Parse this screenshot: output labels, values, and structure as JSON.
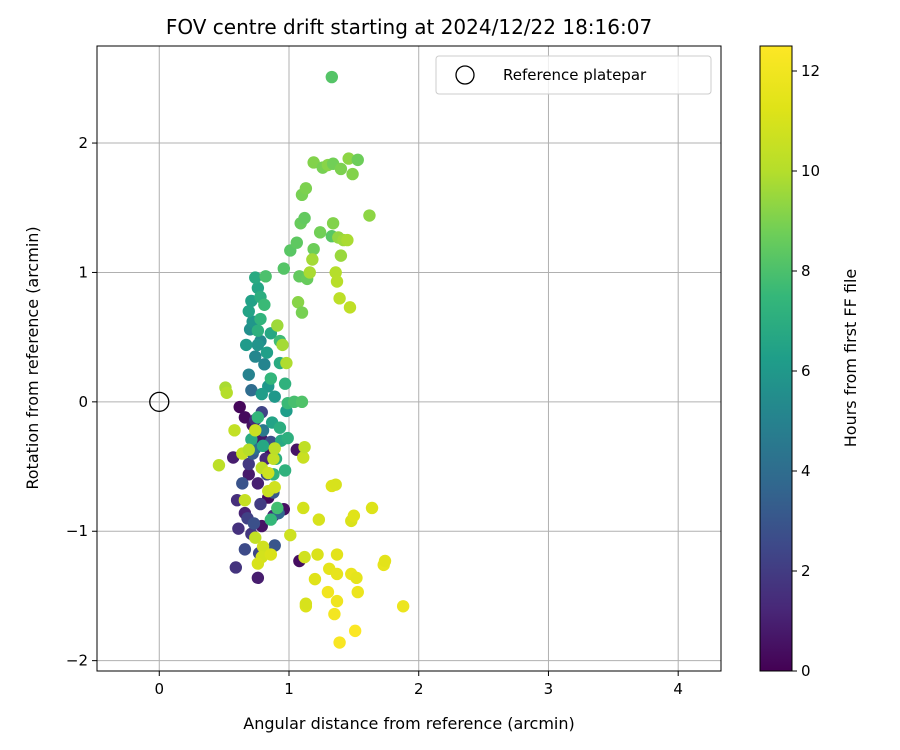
{
  "chart_data": {
    "type": "scatter",
    "title": "FOV centre drift starting at 2024/12/22 18:16:07",
    "xlabel": "Angular distance from reference (arcmin)",
    "ylabel": "Rotation from reference (arcmin)",
    "xlim": [
      -0.48,
      4.33
    ],
    "ylim": [
      -2.08,
      2.75
    ],
    "xticks": [
      "0",
      "1",
      "2",
      "3",
      "4"
    ],
    "yticks": [
      "−2",
      "−1",
      "0",
      "1",
      "2"
    ],
    "grid": true,
    "legend": {
      "placement": "top-right",
      "entries": [
        "Reference platepar"
      ]
    },
    "reference_point": {
      "name": "Reference platepar",
      "x": 0.0,
      "y": 0.0
    },
    "colorbar": {
      "label": "Hours from first FF file",
      "range": [
        0,
        12.5
      ],
      "ticks": [
        "0",
        "2",
        "4",
        "6",
        "8",
        "10",
        "12"
      ],
      "colormap": "viridis"
    },
    "points": [
      {
        "x": 0.62,
        "y": -0.04,
        "h": 0.2
      },
      {
        "x": 0.66,
        "y": -0.12,
        "h": 0.3
      },
      {
        "x": 0.72,
        "y": -0.18,
        "h": 0.5
      },
      {
        "x": 0.79,
        "y": -0.29,
        "h": 0.7
      },
      {
        "x": 0.86,
        "y": -0.38,
        "h": 0.4
      },
      {
        "x": 1.06,
        "y": -0.37,
        "h": 0.6
      },
      {
        "x": 0.57,
        "y": -0.43,
        "h": 0.9
      },
      {
        "x": 0.69,
        "y": -0.56,
        "h": 0.8
      },
      {
        "x": 0.76,
        "y": -0.63,
        "h": 1.0
      },
      {
        "x": 0.84,
        "y": -0.74,
        "h": 0.3
      },
      {
        "x": 0.96,
        "y": -0.83,
        "h": 0.5
      },
      {
        "x": 0.66,
        "y": -0.86,
        "h": 1.1
      },
      {
        "x": 0.79,
        "y": -0.96,
        "h": 0.6
      },
      {
        "x": 1.08,
        "y": -1.23,
        "h": 0.4
      },
      {
        "x": 0.76,
        "y": -1.36,
        "h": 0.9
      },
      {
        "x": 0.6,
        "y": -0.76,
        "h": 1.5
      },
      {
        "x": 0.61,
        "y": -0.98,
        "h": 1.6
      },
      {
        "x": 0.71,
        "y": -1.02,
        "h": 1.8
      },
      {
        "x": 0.69,
        "y": -0.48,
        "h": 1.9
      },
      {
        "x": 0.59,
        "y": -1.28,
        "h": 1.7
      },
      {
        "x": 0.78,
        "y": -0.79,
        "h": 2.0
      },
      {
        "x": 0.74,
        "y": -0.14,
        "h": 1.4
      },
      {
        "x": 0.82,
        "y": -0.44,
        "h": 1.3
      },
      {
        "x": 0.88,
        "y": -0.88,
        "h": 1.2
      },
      {
        "x": 0.68,
        "y": -0.9,
        "h": 2.2
      },
      {
        "x": 0.77,
        "y": -1.17,
        "h": 2.4
      },
      {
        "x": 0.66,
        "y": -1.14,
        "h": 2.6
      },
      {
        "x": 0.73,
        "y": -0.94,
        "h": 2.8
      },
      {
        "x": 0.64,
        "y": -0.63,
        "h": 2.9
      },
      {
        "x": 0.83,
        "y": -0.56,
        "h": 2.5
      },
      {
        "x": 0.89,
        "y": -1.11,
        "h": 3.0
      },
      {
        "x": 0.86,
        "y": -0.31,
        "h": 2.7
      },
      {
        "x": 0.72,
        "y": -0.4,
        "h": 3.2
      },
      {
        "x": 0.79,
        "y": -0.08,
        "h": 2.3
      },
      {
        "x": 0.88,
        "y": -0.7,
        "h": 3.1
      },
      {
        "x": 0.71,
        "y": 0.09,
        "h": 4.0
      },
      {
        "x": 0.74,
        "y": -0.36,
        "h": 4.2
      },
      {
        "x": 0.8,
        "y": -0.22,
        "h": 4.5
      },
      {
        "x": 0.92,
        "y": -0.86,
        "h": 3.8
      },
      {
        "x": 0.69,
        "y": 0.21,
        "h": 5.0
      },
      {
        "x": 0.74,
        "y": 0.35,
        "h": 5.2
      },
      {
        "x": 0.78,
        "y": 0.47,
        "h": 5.4
      },
      {
        "x": 0.7,
        "y": 0.56,
        "h": 5.6
      },
      {
        "x": 0.76,
        "y": 0.44,
        "h": 5.8
      },
      {
        "x": 0.81,
        "y": 0.29,
        "h": 5.1
      },
      {
        "x": 0.67,
        "y": 0.44,
        "h": 6.1
      },
      {
        "x": 0.72,
        "y": 0.62,
        "h": 5.9
      },
      {
        "x": 0.84,
        "y": 0.12,
        "h": 6.0
      },
      {
        "x": 0.79,
        "y": 0.06,
        "h": 6.2
      },
      {
        "x": 0.71,
        "y": 0.78,
        "h": 6.4
      },
      {
        "x": 0.76,
        "y": 0.88,
        "h": 6.6
      },
      {
        "x": 0.74,
        "y": 0.96,
        "h": 6.8
      },
      {
        "x": 0.78,
        "y": 0.81,
        "h": 7.0
      },
      {
        "x": 0.69,
        "y": 0.7,
        "h": 6.5
      },
      {
        "x": 0.86,
        "y": 0.53,
        "h": 6.7
      },
      {
        "x": 0.83,
        "y": 0.38,
        "h": 6.3
      },
      {
        "x": 0.93,
        "y": 0.3,
        "h": 6.9
      },
      {
        "x": 0.89,
        "y": 0.04,
        "h": 6.0
      },
      {
        "x": 0.98,
        "y": -0.07,
        "h": 6.2
      },
      {
        "x": 0.87,
        "y": -0.16,
        "h": 6.5
      },
      {
        "x": 0.94,
        "y": -0.3,
        "h": 6.8
      },
      {
        "x": 0.9,
        "y": -0.44,
        "h": 7.0
      },
      {
        "x": 0.97,
        "y": -0.53,
        "h": 7.2
      },
      {
        "x": 0.99,
        "y": -0.28,
        "h": 7.1
      },
      {
        "x": 0.88,
        "y": -0.56,
        "h": 7.3
      },
      {
        "x": 0.76,
        "y": -0.12,
        "h": 7.4
      },
      {
        "x": 0.71,
        "y": -0.29,
        "h": 6.9
      },
      {
        "x": 0.8,
        "y": -0.34,
        "h": 6.7
      },
      {
        "x": 0.93,
        "y": -0.2,
        "h": 7.0
      },
      {
        "x": 0.86,
        "y": -0.91,
        "h": 7.5
      },
      {
        "x": 0.91,
        "y": -0.82,
        "h": 7.8
      },
      {
        "x": 0.97,
        "y": 0.14,
        "h": 7.2
      },
      {
        "x": 0.99,
        "y": -0.01,
        "h": 7.6
      },
      {
        "x": 1.04,
        "y": 0.0,
        "h": 7.9
      },
      {
        "x": 1.1,
        "y": 0.0,
        "h": 8.1
      },
      {
        "x": 0.93,
        "y": 0.47,
        "h": 7.7
      },
      {
        "x": 0.86,
        "y": 0.18,
        "h": 7.4
      },
      {
        "x": 0.82,
        "y": 0.97,
        "h": 8.0
      },
      {
        "x": 0.78,
        "y": 0.64,
        "h": 7.3
      },
      {
        "x": 0.76,
        "y": 0.55,
        "h": 7.1
      },
      {
        "x": 0.81,
        "y": 0.75,
        "h": 7.6
      },
      {
        "x": 0.96,
        "y": 1.03,
        "h": 8.2
      },
      {
        "x": 1.01,
        "y": 1.17,
        "h": 8.3
      },
      {
        "x": 1.06,
        "y": 1.23,
        "h": 8.4
      },
      {
        "x": 1.08,
        "y": 0.97,
        "h": 8.5
      },
      {
        "x": 1.14,
        "y": 0.95,
        "h": 8.6
      },
      {
        "x": 1.19,
        "y": 1.18,
        "h": 8.7
      },
      {
        "x": 1.24,
        "y": 1.31,
        "h": 8.8
      },
      {
        "x": 1.33,
        "y": 1.28,
        "h": 8.3
      },
      {
        "x": 1.09,
        "y": 1.38,
        "h": 8.6
      },
      {
        "x": 1.12,
        "y": 1.42,
        "h": 8.5
      },
      {
        "x": 1.1,
        "y": 1.6,
        "h": 8.9
      },
      {
        "x": 1.13,
        "y": 1.65,
        "h": 9.0
      },
      {
        "x": 1.19,
        "y": 1.85,
        "h": 9.1
      },
      {
        "x": 1.26,
        "y": 1.81,
        "h": 8.9
      },
      {
        "x": 1.3,
        "y": 1.83,
        "h": 9.2
      },
      {
        "x": 1.34,
        "y": 1.84,
        "h": 8.8
      },
      {
        "x": 1.4,
        "y": 1.8,
        "h": 9.0
      },
      {
        "x": 1.46,
        "y": 1.88,
        "h": 9.3
      },
      {
        "x": 1.53,
        "y": 1.87,
        "h": 8.7
      },
      {
        "x": 1.49,
        "y": 1.76,
        "h": 9.1
      },
      {
        "x": 1.33,
        "y": 2.51,
        "h": 8.2
      },
      {
        "x": 1.34,
        "y": 1.38,
        "h": 9.1
      },
      {
        "x": 1.38,
        "y": 1.27,
        "h": 9.4
      },
      {
        "x": 1.42,
        "y": 1.25,
        "h": 9.6
      },
      {
        "x": 1.45,
        "y": 1.25,
        "h": 9.8
      },
      {
        "x": 1.4,
        "y": 1.13,
        "h": 9.5
      },
      {
        "x": 1.62,
        "y": 1.44,
        "h": 9.3
      },
      {
        "x": 1.18,
        "y": 1.1,
        "h": 9.7
      },
      {
        "x": 1.16,
        "y": 1.0,
        "h": 9.8
      },
      {
        "x": 1.07,
        "y": 0.77,
        "h": 9.2
      },
      {
        "x": 1.1,
        "y": 0.69,
        "h": 8.9
      },
      {
        "x": 1.36,
        "y": 1.0,
        "h": 10.0
      },
      {
        "x": 1.37,
        "y": 0.93,
        "h": 10.1
      },
      {
        "x": 1.39,
        "y": 0.8,
        "h": 10.2
      },
      {
        "x": 1.47,
        "y": 0.73,
        "h": 10.3
      },
      {
        "x": 0.91,
        "y": 0.59,
        "h": 9.6
      },
      {
        "x": 0.95,
        "y": 0.44,
        "h": 9.7
      },
      {
        "x": 0.98,
        "y": 0.3,
        "h": 9.9
      },
      {
        "x": 0.51,
        "y": 0.11,
        "h": 9.8
      },
      {
        "x": 0.52,
        "y": 0.07,
        "h": 10.0
      },
      {
        "x": 0.58,
        "y": -0.22,
        "h": 10.4
      },
      {
        "x": 0.46,
        "y": -0.49,
        "h": 10.2
      },
      {
        "x": 0.64,
        "y": -0.4,
        "h": 10.5
      },
      {
        "x": 0.69,
        "y": -0.37,
        "h": 10.1
      },
      {
        "x": 0.74,
        "y": -0.22,
        "h": 10.6
      },
      {
        "x": 0.79,
        "y": -0.51,
        "h": 10.3
      },
      {
        "x": 0.84,
        "y": -0.55,
        "h": 10.7
      },
      {
        "x": 0.88,
        "y": -0.44,
        "h": 10.4
      },
      {
        "x": 0.89,
        "y": -0.36,
        "h": 10.2
      },
      {
        "x": 0.84,
        "y": -0.69,
        "h": 10.6
      },
      {
        "x": 0.89,
        "y": -0.66,
        "h": 10.8
      },
      {
        "x": 0.66,
        "y": -0.76,
        "h": 10.5
      },
      {
        "x": 1.11,
        "y": -0.43,
        "h": 10.6
      },
      {
        "x": 1.12,
        "y": -0.35,
        "h": 10.3
      },
      {
        "x": 1.11,
        "y": -0.82,
        "h": 10.9
      },
      {
        "x": 1.23,
        "y": -0.91,
        "h": 11.0
      },
      {
        "x": 1.01,
        "y": -1.03,
        "h": 10.7
      },
      {
        "x": 0.74,
        "y": -1.05,
        "h": 10.4
      },
      {
        "x": 0.8,
        "y": -1.12,
        "h": 10.8
      },
      {
        "x": 0.79,
        "y": -1.2,
        "h": 10.9
      },
      {
        "x": 0.76,
        "y": -1.25,
        "h": 11.0
      },
      {
        "x": 0.86,
        "y": -1.18,
        "h": 11.1
      },
      {
        "x": 1.12,
        "y": -1.2,
        "h": 10.8
      },
      {
        "x": 1.22,
        "y": -1.18,
        "h": 11.1
      },
      {
        "x": 1.33,
        "y": -0.65,
        "h": 11.2
      },
      {
        "x": 1.36,
        "y": -0.64,
        "h": 11.0
      },
      {
        "x": 1.48,
        "y": -0.92,
        "h": 11.1
      },
      {
        "x": 1.5,
        "y": -0.88,
        "h": 11.3
      },
      {
        "x": 1.64,
        "y": -0.82,
        "h": 11.2
      },
      {
        "x": 1.37,
        "y": -1.18,
        "h": 11.4
      },
      {
        "x": 1.31,
        "y": -1.29,
        "h": 11.5
      },
      {
        "x": 1.37,
        "y": -1.33,
        "h": 11.6
      },
      {
        "x": 1.2,
        "y": -1.37,
        "h": 11.3
      },
      {
        "x": 1.48,
        "y": -1.33,
        "h": 11.7
      },
      {
        "x": 1.52,
        "y": -1.36,
        "h": 11.5
      },
      {
        "x": 1.53,
        "y": -1.47,
        "h": 11.8
      },
      {
        "x": 1.73,
        "y": -1.26,
        "h": 11.6
      },
      {
        "x": 1.74,
        "y": -1.23,
        "h": 11.4
      },
      {
        "x": 1.13,
        "y": -1.58,
        "h": 11.2
      },
      {
        "x": 1.13,
        "y": -1.56,
        "h": 11.0
      },
      {
        "x": 1.3,
        "y": -1.47,
        "h": 12.0
      },
      {
        "x": 1.37,
        "y": -1.54,
        "h": 11.9
      },
      {
        "x": 1.35,
        "y": -1.64,
        "h": 12.1
      },
      {
        "x": 1.39,
        "y": -1.86,
        "h": 12.3
      },
      {
        "x": 1.51,
        "y": -1.77,
        "h": 12.4
      },
      {
        "x": 1.88,
        "y": -1.58,
        "h": 11.8
      }
    ]
  }
}
